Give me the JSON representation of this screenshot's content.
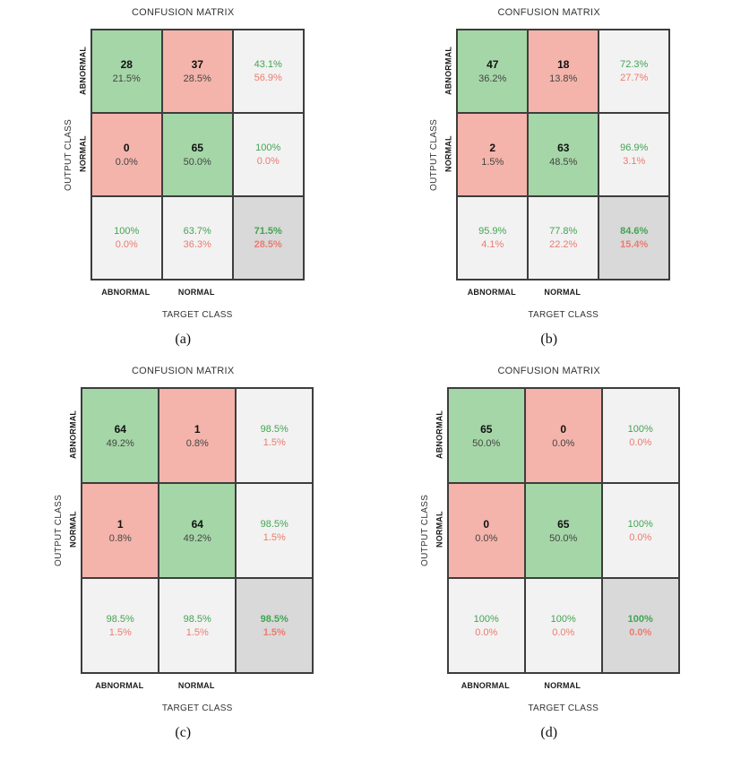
{
  "figure": {
    "title": "CONFUSION MATRIX",
    "x_axis_label": "TARGET CLASS",
    "y_axis_label": "OUTPUT CLASS",
    "row_labels": [
      "ABNORMAL",
      "NORMAL"
    ],
    "col_labels": [
      "ABNORMAL",
      "NORMAL"
    ]
  },
  "colors": {
    "correct_cell": "#a5d6a7",
    "incorrect_cell": "#f4b4ab",
    "summary_cell": "#f2f2f2",
    "total_cell": "#d9d9d9",
    "good_text": "#43a452",
    "bad_text": "#ee7a6e",
    "grid_line": "#3d3d3d"
  },
  "chart_data": [
    {
      "type": "heatmap",
      "caption": "(a)",
      "title": "CONFUSION MATRIX",
      "xlabel": "TARGET CLASS",
      "ylabel": "OUTPUT CLASS",
      "classes": [
        "ABNORMAL",
        "NORMAL"
      ],
      "counts": [
        [
          28,
          37
        ],
        [
          0,
          65
        ]
      ],
      "count_pcts": [
        [
          "21.5%",
          "28.5%"
        ],
        [
          "0.0%",
          "50.0%"
        ]
      ],
      "row_summary": [
        [
          "43.1%",
          "56.9%"
        ],
        [
          "100%",
          "0.0%"
        ]
      ],
      "col_summary": [
        [
          "100%",
          "0.0%"
        ],
        [
          "63.7%",
          "36.3%"
        ]
      ],
      "overall": [
        "71.5%",
        "28.5%"
      ]
    },
    {
      "type": "heatmap",
      "caption": "(b)",
      "title": "CONFUSION MATRIX",
      "xlabel": "TARGET CLASS",
      "ylabel": "OUTPUT CLASS",
      "classes": [
        "ABNORMAL",
        "NORMAL"
      ],
      "counts": [
        [
          47,
          18
        ],
        [
          2,
          63
        ]
      ],
      "count_pcts": [
        [
          "36.2%",
          "13.8%"
        ],
        [
          "1.5%",
          "48.5%"
        ]
      ],
      "row_summary": [
        [
          "72.3%",
          "27.7%"
        ],
        [
          "96.9%",
          "3.1%"
        ]
      ],
      "col_summary": [
        [
          "95.9%",
          "4.1%"
        ],
        [
          "77.8%",
          "22.2%"
        ]
      ],
      "overall": [
        "84.6%",
        "15.4%"
      ]
    },
    {
      "type": "heatmap",
      "caption": "(c)",
      "title": "CONFUSION MATRIX",
      "xlabel": "TARGET CLASS",
      "ylabel": "OUTPUT CLASS",
      "classes": [
        "ABNORMAL",
        "NORMAL"
      ],
      "counts": [
        [
          64,
          1
        ],
        [
          1,
          64
        ]
      ],
      "count_pcts": [
        [
          "49.2%",
          "0.8%"
        ],
        [
          "0.8%",
          "49.2%"
        ]
      ],
      "row_summary": [
        [
          "98.5%",
          "1.5%"
        ],
        [
          "98.5%",
          "1.5%"
        ]
      ],
      "col_summary": [
        [
          "98.5%",
          "1.5%"
        ],
        [
          "98.5%",
          "1.5%"
        ]
      ],
      "overall": [
        "98.5%",
        "1.5%"
      ]
    },
    {
      "type": "heatmap",
      "caption": "(d)",
      "title": "CONFUSION MATRIX",
      "xlabel": "TARGET CLASS",
      "ylabel": "OUTPUT CLASS",
      "classes": [
        "ABNORMAL",
        "NORMAL"
      ],
      "counts": [
        [
          65,
          0
        ],
        [
          0,
          65
        ]
      ],
      "count_pcts": [
        [
          "50.0%",
          "0.0%"
        ],
        [
          "0.0%",
          "50.0%"
        ]
      ],
      "row_summary": [
        [
          "100%",
          "0.0%"
        ],
        [
          "100%",
          "0.0%"
        ]
      ],
      "col_summary": [
        [
          "100%",
          "0.0%"
        ],
        [
          "100%",
          "0.0%"
        ]
      ],
      "overall": [
        "100%",
        "0.0%"
      ]
    }
  ]
}
